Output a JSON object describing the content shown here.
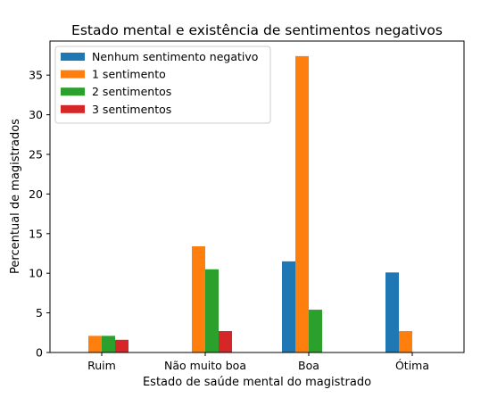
{
  "chart_data": {
    "type": "bar",
    "title": "Estado mental e existência de sentimentos negativos",
    "xlabel": "Estado de saúde mental do magistrado",
    "ylabel": "Percentual de magistrados",
    "categories": [
      "Ruim",
      "Não muito boa",
      "Boa",
      "Ótima"
    ],
    "series": [
      {
        "name": "Nenhum sentimento negativo",
        "color": "#1f77b4",
        "values": [
          0,
          0,
          11.5,
          10.1
        ]
      },
      {
        "name": "1 sentimento",
        "color": "#ff7f0e",
        "values": [
          2.1,
          13.4,
          37.4,
          2.7
        ]
      },
      {
        "name": "2 sentimentos",
        "color": "#2ca02c",
        "values": [
          2.1,
          10.5,
          5.4,
          0
        ]
      },
      {
        "name": "3 sentimentos",
        "color": "#d62728",
        "values": [
          1.6,
          2.7,
          0,
          0
        ]
      }
    ],
    "ylim": [
      0,
      39.3
    ],
    "yticks": [
      0,
      5,
      10,
      15,
      20,
      25,
      30,
      35
    ],
    "grid": false,
    "legend_position": "top-left"
  }
}
